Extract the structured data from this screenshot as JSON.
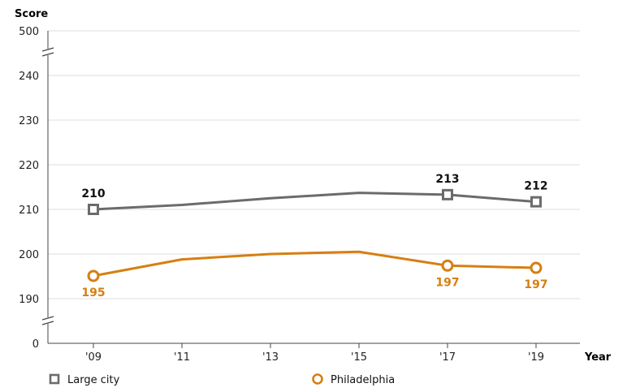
{
  "chart_data": {
    "type": "line",
    "xlabel": "Year",
    "ylabel": "Score",
    "x": [
      "'09",
      "'11",
      "'13",
      "'15",
      "'17",
      "'19"
    ],
    "y_ticks": [
      0,
      190,
      200,
      210,
      220,
      230,
      240,
      500
    ],
    "y_axis_breaks": [
      [
        0,
        190
      ],
      [
        240,
        500
      ]
    ],
    "ylim_visible": [
      190,
      240
    ],
    "grid": "horizontal",
    "legend_position": "bottom",
    "series": [
      {
        "name": "Large city",
        "color": "#6b6b6b",
        "marker": "square",
        "values": [
          210,
          211,
          212.5,
          213.7,
          213.3,
          211.7
        ],
        "labels": [
          {
            "index": 0,
            "text": "210",
            "placement": "above"
          },
          {
            "index": 4,
            "text": "213",
            "placement": "above"
          },
          {
            "index": 5,
            "text": "212",
            "placement": "above"
          }
        ],
        "marked_points": [
          0,
          4,
          5
        ]
      },
      {
        "name": "Philadelphia",
        "color": "#d67f12",
        "marker": "circle",
        "values": [
          195.1,
          198.8,
          200,
          200.5,
          197.4,
          196.9
        ],
        "labels": [
          {
            "index": 0,
            "text": "195",
            "placement": "below"
          },
          {
            "index": 4,
            "text": "197",
            "placement": "below"
          },
          {
            "index": 5,
            "text": "197",
            "placement": "below"
          }
        ],
        "marked_points": [
          0,
          4,
          5
        ]
      }
    ]
  }
}
